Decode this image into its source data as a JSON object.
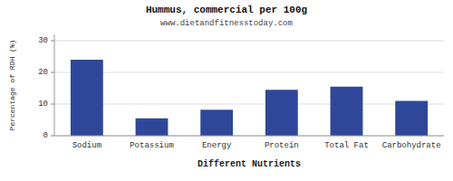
{
  "chart_data": {
    "type": "bar",
    "title": "Hummus, commercial per 100g",
    "subtitle": "www.dietandfitnesstoday.com",
    "xlabel": "Different Nutrients",
    "ylabel": "Percentage of RDH (%)",
    "categories": [
      "Sodium",
      "Potassium",
      "Energy",
      "Protein",
      "Total Fat",
      "Carbohydrate"
    ],
    "values": [
      24.0,
      5.5,
      8.2,
      14.5,
      15.5,
      11.0
    ],
    "color": "#2e4799",
    "ylim": [
      0,
      32
    ],
    "yticks": [
      0,
      10,
      20,
      30
    ],
    "grid": true
  }
}
